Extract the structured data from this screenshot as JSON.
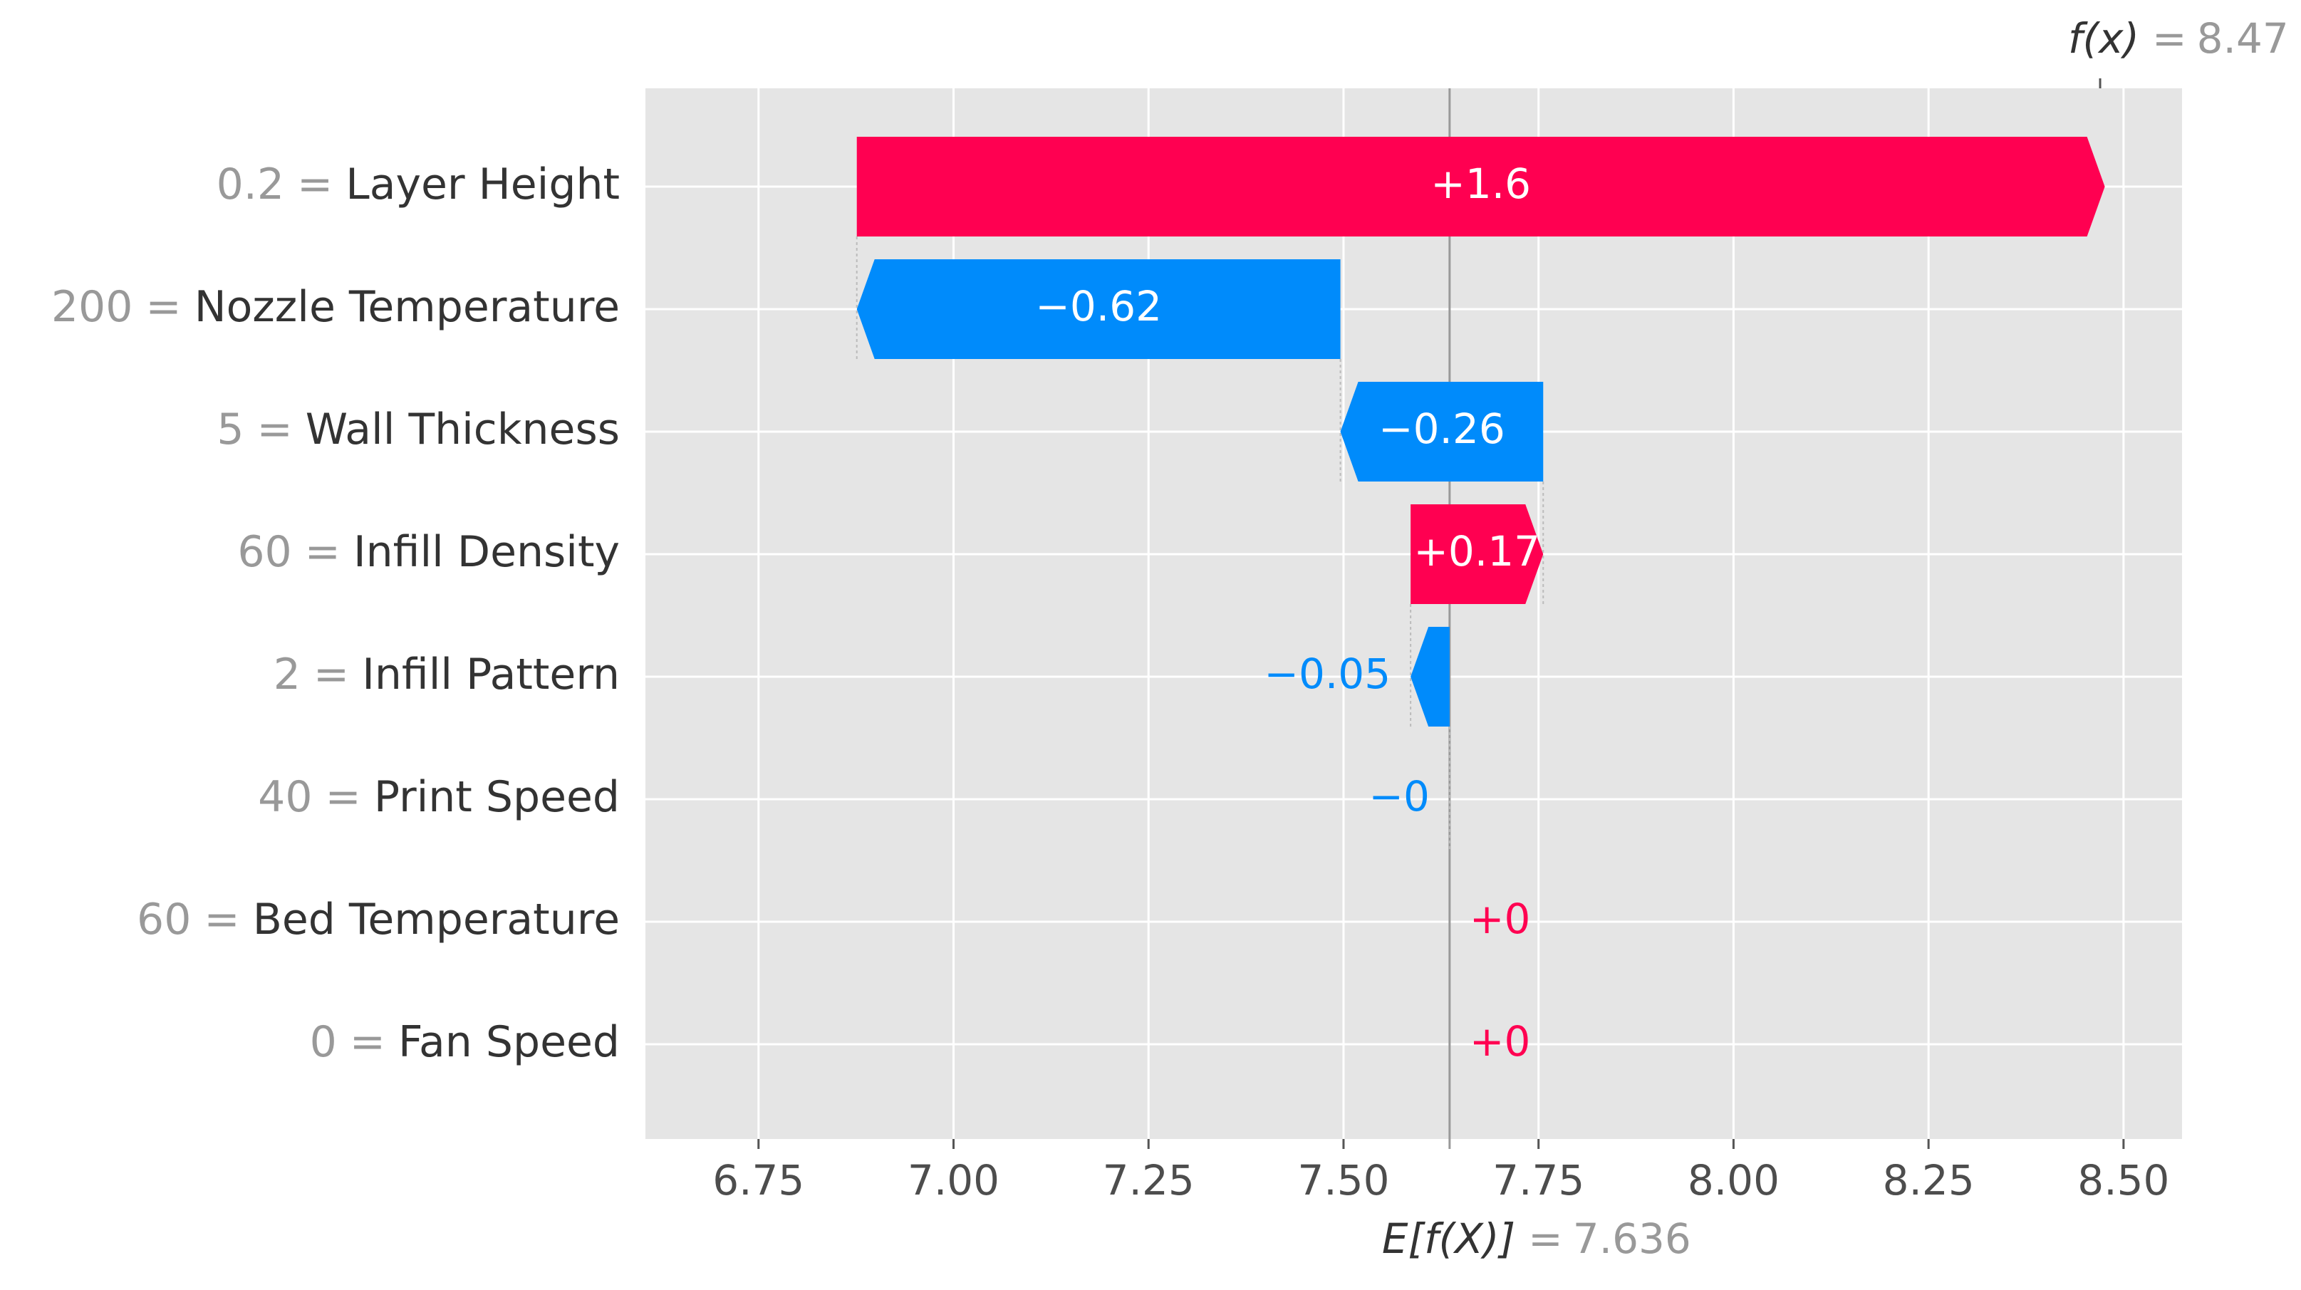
{
  "chart_data": {
    "type": "waterfall",
    "categories": [
      "Layer Height",
      "Nozzle Temperature",
      "Wall Thickness",
      "Infill Density",
      "Infill Pattern",
      "Print Speed",
      "Bed Temperature",
      "Fan Speed"
    ],
    "feature_values": [
      "0.2",
      "200",
      "5",
      "60",
      "2",
      "40",
      "60",
      "0"
    ],
    "separator": "=",
    "values": [
      1.6,
      -0.62,
      -0.26,
      0.17,
      -0.05,
      0,
      0,
      0
    ],
    "value_labels": [
      "+1.6",
      "−0.62",
      "−0.26",
      "+0.17",
      "−0.05",
      "−0",
      "+0",
      "+0"
    ],
    "base_label": "E[f(X)]",
    "base_value": 7.636,
    "output_label": "f(x)",
    "output_value": 8.47,
    "positive_color": "#ff0051",
    "negative_color": "#008bfb",
    "xlim": [
      6.605,
      8.575
    ],
    "xticks": [
      6.75,
      {
        "value": 7.0,
        "label": "7.00"
      },
      7.25,
      {
        "value": 7.5,
        "label": "7.50"
      },
      7.75,
      {
        "value": 8.0,
        "label": "8.00"
      },
      8.25,
      {
        "value": 8.5,
        "label": "8.50"
      }
    ],
    "grid": true
  }
}
